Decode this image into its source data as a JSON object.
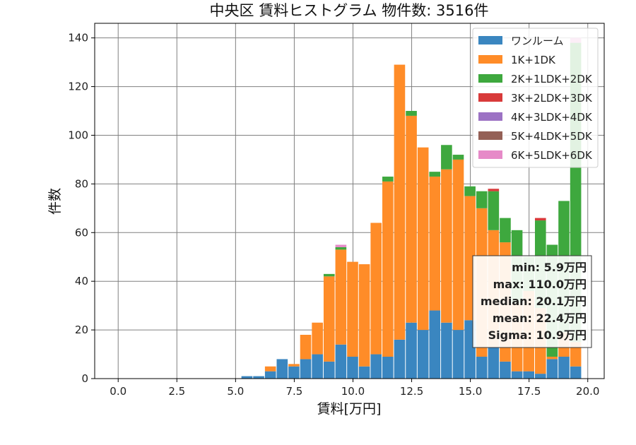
{
  "chart_data": {
    "type": "bar",
    "stacked": true,
    "title": "中央区 賃料ヒストグラム 物件数: 3516件",
    "xlabel": "賃料[万円]",
    "ylabel": "件数",
    "xlim": [
      -1,
      20.7
    ],
    "ylim": [
      0,
      146
    ],
    "xticks": [
      0.0,
      2.5,
      5.0,
      7.5,
      10.0,
      12.5,
      15.0,
      17.5,
      20.0
    ],
    "xtick_labels": [
      "0.0",
      "2.5",
      "5.0",
      "7.5",
      "10.0",
      "12.5",
      "15.0",
      "17.5",
      "20.0"
    ],
    "yticks": [
      0,
      20,
      40,
      60,
      80,
      100,
      120,
      140
    ],
    "ytick_labels": [
      "0",
      "20",
      "40",
      "60",
      "80",
      "100",
      "120",
      "140"
    ],
    "grid": true,
    "legend_position": "top-right",
    "bin_width": 0.5,
    "x": [
      5.5,
      6.0,
      6.5,
      7.0,
      7.5,
      8.0,
      8.5,
      9.0,
      9.5,
      10.0,
      10.5,
      11.0,
      11.5,
      12.0,
      12.5,
      13.0,
      13.5,
      14.0,
      14.5,
      15.0,
      15.5,
      16.0,
      16.5,
      17.0,
      17.5,
      18.0,
      18.5,
      19.0,
      19.5
    ],
    "series": [
      {
        "name": "ワンルーム",
        "color": "#3a86c0",
        "values": [
          1,
          1,
          3,
          8,
          5,
          8,
          10,
          7,
          14,
          9,
          5,
          10,
          9,
          16,
          23,
          20,
          28,
          23,
          20,
          24,
          9,
          13,
          7,
          3,
          3,
          2,
          8,
          9,
          5
        ]
      },
      {
        "name": "1K+1DK",
        "color": "#ff8c28",
        "values": [
          0,
          0,
          2,
          0,
          1,
          10,
          13,
          35,
          39,
          39,
          42,
          54,
          72,
          113,
          85,
          75,
          55,
          63,
          70,
          51,
          61,
          48,
          49,
          28,
          33,
          27,
          1,
          10,
          10
        ]
      },
      {
        "name": "2K+1LDK+2DK",
        "color": "#3ea83e",
        "values": [
          0,
          0,
          0,
          0,
          0,
          0,
          0,
          1,
          1,
          0,
          0,
          0,
          2,
          0,
          2,
          0,
          2,
          10,
          2,
          4,
          7,
          16,
          10,
          30,
          14,
          36,
          46,
          54,
          123
        ]
      },
      {
        "name": "3K+2LDK+3DK",
        "color": "#d83a3a",
        "values": [
          0,
          0,
          0,
          0,
          0,
          0,
          0,
          0,
          0,
          0,
          0,
          0,
          0,
          0,
          0,
          0,
          0,
          0,
          0,
          0,
          0,
          1,
          0,
          0,
          0,
          1,
          0,
          0,
          0
        ]
      },
      {
        "name": "4K+3LDK+4DK",
        "color": "#9c72c4",
        "values": [
          0,
          0,
          0,
          0,
          0,
          0,
          0,
          0,
          0,
          0,
          0,
          0,
          0,
          0,
          0,
          0,
          0,
          0,
          0,
          0,
          0,
          0,
          0,
          0,
          0,
          0,
          0,
          0,
          0
        ]
      },
      {
        "name": "5K+4LDK+5DK",
        "color": "#946056",
        "values": [
          0,
          0,
          0,
          0,
          0,
          0,
          0,
          0,
          0,
          0,
          0,
          0,
          0,
          0,
          0,
          0,
          0,
          0,
          0,
          0,
          0,
          0,
          0,
          0,
          0,
          0,
          0,
          0,
          0
        ]
      },
      {
        "name": "6K+5LDK+6DK",
        "color": "#e68ac8",
        "values": [
          0,
          0,
          0,
          0,
          0,
          0,
          0,
          0,
          1,
          0,
          0,
          0,
          0,
          0,
          0,
          0,
          0,
          0,
          0,
          0,
          0,
          0,
          0,
          0,
          0,
          0,
          0,
          0,
          2
        ]
      }
    ],
    "stats": [
      "min: 5.9万円",
      "max: 110.0万円",
      "median: 20.1万円",
      "mean: 22.4万円",
      "Sigma: 10.9万円"
    ]
  }
}
